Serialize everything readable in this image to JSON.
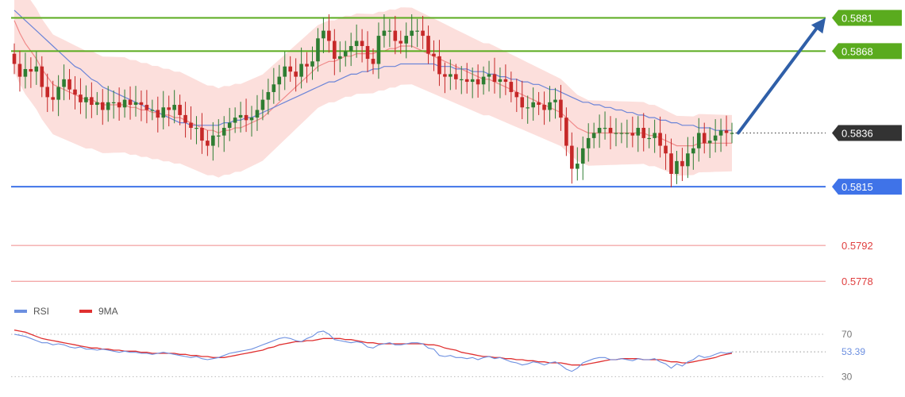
{
  "colors": {
    "resistance": "#5aab1e",
    "support": "#3f73e8",
    "lower_level": "#ef8a8a",
    "current": "#333333",
    "bull": "#2e7d32",
    "bear": "#c62828",
    "band_fill": "#fbd4d0",
    "ma_fast": "#f08a8a",
    "ma_slow": "#6c85d8",
    "arrow": "#2f5fa8",
    "rsi": "#6c8fe0",
    "rsi_ma": "#e03030"
  },
  "chart_data": {
    "type": "line",
    "subtype": "candlestick-with-levels",
    "ylim": [
      0.577,
      0.5888
    ],
    "levels": [
      {
        "name": "resistance-2",
        "value": 0.5881,
        "label": "0.5881",
        "kind": "resistance"
      },
      {
        "name": "resistance-1",
        "value": 0.5868,
        "label": "0.5868",
        "kind": "resistance"
      },
      {
        "name": "current",
        "value": 0.5836,
        "label": "0.5836",
        "kind": "current"
      },
      {
        "name": "support-1",
        "value": 0.5815,
        "label": "0.5815",
        "kind": "support"
      },
      {
        "name": "support-2",
        "value": 0.5792,
        "label": "0.5792",
        "kind": "lower"
      },
      {
        "name": "support-3",
        "value": 0.5778,
        "label": "0.5778",
        "kind": "lower"
      }
    ],
    "arrow": {
      "from": 0.5836,
      "to": 0.5881
    },
    "candles_close": [
      0.5863,
      0.5858,
      0.5861,
      0.586,
      0.5862,
      0.5854,
      0.585,
      0.5849,
      0.5854,
      0.5857,
      0.5853,
      0.5851,
      0.5848,
      0.585,
      0.5847,
      0.5848,
      0.5845,
      0.5848,
      0.5848,
      0.5846,
      0.5849,
      0.5847,
      0.5848,
      0.5847,
      0.5845,
      0.5845,
      0.5842,
      0.5846,
      0.5845,
      0.5847,
      0.5843,
      0.584,
      0.5838,
      0.5838,
      0.5833,
      0.5831,
      0.5835,
      0.5835,
      0.5838,
      0.584,
      0.5842,
      0.5843,
      0.5841,
      0.5842,
      0.5845,
      0.5849,
      0.5852,
      0.5855,
      0.5858,
      0.5862,
      0.586,
      0.5858,
      0.5863,
      0.5862,
      0.5864,
      0.5873,
      0.5876,
      0.5872,
      0.5865,
      0.5866,
      0.5868,
      0.587,
      0.5872,
      0.587,
      0.5865,
      0.5863,
      0.5874,
      0.5876,
      0.5876,
      0.5872,
      0.5871,
      0.5874,
      0.5876,
      0.5876,
      0.5874,
      0.5867,
      0.5866,
      0.5859,
      0.5858,
      0.5859,
      0.5857,
      0.5857,
      0.5856,
      0.5857,
      0.5855,
      0.5858,
      0.5859,
      0.5856,
      0.5857,
      0.5856,
      0.5852,
      0.585,
      0.5846,
      0.5846,
      0.5848,
      0.5847,
      0.5845,
      0.5848,
      0.5849,
      0.5842,
      0.5831,
      0.5822,
      0.5824,
      0.583,
      0.5834,
      0.5836,
      0.5838,
      0.5838,
      0.5836,
      0.5836,
      0.5836,
      0.5836,
      0.5835,
      0.5838,
      0.5834,
      0.5834,
      0.5836,
      0.5831,
      0.5828,
      0.582,
      0.5825,
      0.5823,
      0.5828,
      0.583,
      0.5836,
      0.5832,
      0.5833,
      0.5835,
      0.5837,
      0.5836,
      0.5836
    ],
    "ma_fast": [
      0.588,
      0.5875,
      0.5871,
      0.5868,
      0.5865,
      0.5861,
      0.5858,
      0.5855,
      0.5854,
      0.5853,
      0.5852,
      0.5851,
      0.585,
      0.5849,
      0.5849,
      0.5848,
      0.5847,
      0.5847,
      0.5847,
      0.5847,
      0.5847,
      0.5846,
      0.5846,
      0.5845,
      0.5845,
      0.5844,
      0.5844,
      0.5843,
      0.5843,
      0.5842,
      0.5842,
      0.5841,
      0.584,
      0.5839,
      0.5838,
      0.5837,
      0.5837,
      0.5836,
      0.5837,
      0.5837,
      0.5838,
      0.5838,
      0.5839,
      0.584,
      0.5841,
      0.5842,
      0.5844,
      0.5846,
      0.5848,
      0.585,
      0.5852,
      0.5854,
      0.5856,
      0.5858,
      0.586,
      0.5862,
      0.5863,
      0.5864,
      0.5864,
      0.5865,
      0.5866,
      0.5866,
      0.5867,
      0.5867,
      0.5867,
      0.5867,
      0.5868,
      0.5868,
      0.5869,
      0.5869,
      0.587,
      0.587,
      0.587,
      0.5869,
      0.5868,
      0.5867,
      0.5866,
      0.5865,
      0.5864,
      0.5863,
      0.5862,
      0.5861,
      0.586,
      0.5859,
      0.5858,
      0.5857,
      0.5857,
      0.5856,
      0.5855,
      0.5854,
      0.5853,
      0.5852,
      0.5851,
      0.585,
      0.5849,
      0.5848,
      0.5847,
      0.5846,
      0.5845,
      0.5844,
      0.5842,
      0.584,
      0.5838,
      0.5837,
      0.5836,
      0.5836,
      0.5836,
      0.5836,
      0.5836,
      0.5836,
      0.5836,
      0.5836,
      0.5836,
      0.5836,
      0.5836,
      0.5835,
      0.5835,
      0.5834,
      0.5833,
      0.5832,
      0.5831,
      0.5831,
      0.5831,
      0.5831,
      0.5832,
      0.5832,
      0.5832,
      0.5832,
      0.5832,
      0.5832,
      0.5832
    ],
    "ma_slow": [
      0.5884,
      0.5882,
      0.588,
      0.5878,
      0.5876,
      0.5874,
      0.5872,
      0.587,
      0.5868,
      0.5866,
      0.5864,
      0.5862,
      0.5861,
      0.5859,
      0.5857,
      0.5856,
      0.5854,
      0.5853,
      0.5852,
      0.5851,
      0.585,
      0.5849,
      0.5848,
      0.5847,
      0.5846,
      0.5845,
      0.5844,
      0.5843,
      0.5842,
      0.5841,
      0.584,
      0.584,
      0.5839,
      0.5839,
      0.5839,
      0.5839,
      0.5839,
      0.5839,
      0.584,
      0.584,
      0.5841,
      0.5841,
      0.5842,
      0.5842,
      0.5843,
      0.5844,
      0.5845,
      0.5846,
      0.5847,
      0.5848,
      0.5849,
      0.585,
      0.5851,
      0.5852,
      0.5853,
      0.5854,
      0.5855,
      0.5856,
      0.5856,
      0.5857,
      0.5858,
      0.5859,
      0.5859,
      0.586,
      0.586,
      0.5861,
      0.5861,
      0.5862,
      0.5862,
      0.5862,
      0.5863,
      0.5863,
      0.5863,
      0.5863,
      0.5863,
      0.5863,
      0.5863,
      0.5862,
      0.5862,
      0.5862,
      0.5861,
      0.5861,
      0.5861,
      0.586,
      0.586,
      0.586,
      0.5859,
      0.5859,
      0.5858,
      0.5858,
      0.5857,
      0.5857,
      0.5856,
      0.5856,
      0.5855,
      0.5855,
      0.5854,
      0.5853,
      0.5853,
      0.5852,
      0.5851,
      0.585,
      0.5849,
      0.5848,
      0.5848,
      0.5847,
      0.5847,
      0.5846,
      0.5846,
      0.5845,
      0.5845,
      0.5844,
      0.5844,
      0.5843,
      0.5843,
      0.5842,
      0.5842,
      0.5841,
      0.5841,
      0.584,
      0.584,
      0.5839,
      0.5839,
      0.5839,
      0.5838,
      0.5838,
      0.5838,
      0.5837,
      0.5837,
      0.5837,
      0.5837
    ],
    "rsi_panel": {
      "legend": [
        {
          "name": "RSI",
          "color": "#6c8fe0"
        },
        {
          "name": "9MA",
          "color": "#e03030"
        }
      ],
      "ylim": [
        22,
        82
      ],
      "ticks": [
        {
          "value": 70,
          "label": "70"
        },
        {
          "value": 30,
          "label": "30"
        }
      ],
      "current": {
        "value": 53.39,
        "label": "53.39"
      },
      "rsi": [
        70,
        69,
        68,
        66,
        64,
        62,
        62,
        60,
        61,
        60,
        58,
        57,
        58,
        56,
        56,
        55,
        56,
        55,
        54,
        53,
        54,
        53,
        53,
        52,
        52,
        51,
        52,
        53,
        52,
        51,
        50,
        49,
        48,
        49,
        47,
        46,
        47,
        48,
        50,
        52,
        53,
        54,
        55,
        56,
        58,
        60,
        62,
        64,
        66,
        67,
        66,
        64,
        63,
        66,
        68,
        72,
        73,
        70,
        65,
        64,
        63,
        62,
        63,
        62,
        58,
        57,
        60,
        61,
        62,
        60,
        60,
        61,
        62,
        62,
        61,
        57,
        56,
        50,
        49,
        50,
        48,
        48,
        47,
        48,
        46,
        48,
        49,
        47,
        48,
        46,
        44,
        43,
        41,
        42,
        44,
        43,
        41,
        43,
        44,
        41,
        37,
        35,
        38,
        43,
        45,
        47,
        48,
        48,
        46,
        46,
        47,
        46,
        45,
        47,
        46,
        46,
        47,
        44,
        42,
        38,
        42,
        40,
        44,
        46,
        50,
        48,
        49,
        51,
        53,
        52,
        53
      ],
      "ma9": [
        74,
        73,
        72,
        70,
        68,
        66,
        65,
        64,
        63,
        62,
        61,
        60,
        59,
        58,
        57,
        57,
        56,
        56,
        55,
        55,
        54,
        54,
        54,
        53,
        53,
        52,
        52,
        52,
        52,
        52,
        51,
        51,
        50,
        50,
        49,
        49,
        48,
        48,
        48,
        49,
        50,
        51,
        52,
        53,
        54,
        55,
        57,
        58,
        60,
        61,
        62,
        63,
        63,
        64,
        64,
        65,
        66,
        66,
        66,
        66,
        65,
        65,
        64,
        63,
        62,
        62,
        61,
        61,
        61,
        61,
        61,
        61,
        61,
        61,
        61,
        60,
        60,
        59,
        57,
        56,
        55,
        53,
        52,
        51,
        50,
        49,
        49,
        48,
        48,
        47,
        47,
        46,
        46,
        45,
        45,
        44,
        44,
        43,
        43,
        43,
        42,
        41,
        41,
        41,
        42,
        43,
        44,
        45,
        46,
        46,
        47,
        47,
        47,
        47,
        46,
        46,
        46,
        46,
        45,
        44,
        44,
        43,
        43,
        44,
        45,
        46,
        47,
        48,
        50,
        51,
        52
      ]
    }
  }
}
